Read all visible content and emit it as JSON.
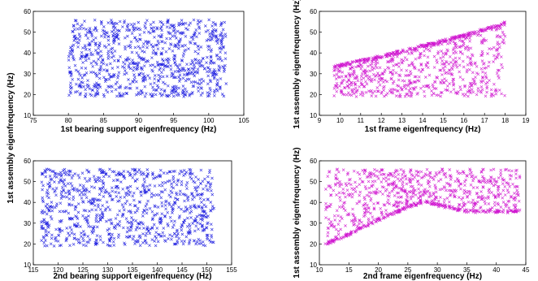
{
  "figure": {
    "shared_ylabel": "1st assembly eigenfrequency (Hz)"
  },
  "chart_data": [
    {
      "type": "scatter",
      "marker": "x",
      "color": "#1f1fe0",
      "xlabel": "1st bearing support eigenfrequency (Hz)",
      "ylabel": "",
      "xlim": [
        75,
        105
      ],
      "ylim": [
        10,
        60
      ],
      "xticks": [
        75,
        80,
        85,
        90,
        95,
        100,
        105
      ],
      "yticks": [
        10,
        20,
        30,
        40,
        50,
        60
      ],
      "grid": false,
      "point_cloud": {
        "count": 900,
        "x_range": [
          80,
          102.5
        ],
        "y_range": [
          19,
          56
        ],
        "distribution": "uniform"
      }
    },
    {
      "type": "scatter",
      "marker": "x",
      "color": "#d018d0",
      "xlabel": "1st frame eigenfrequency (Hz)",
      "ylabel": "1st assembly eigenfrequency (Hz)",
      "xlim": [
        9,
        19
      ],
      "ylim": [
        10,
        60
      ],
      "xticks": [
        9,
        10,
        11,
        12,
        13,
        14,
        15,
        16,
        17,
        18,
        19
      ],
      "yticks": [
        10,
        20,
        30,
        40,
        50,
        60
      ],
      "grid": false,
      "point_cloud": {
        "count": 900,
        "x_range": [
          9.7,
          18
        ],
        "y_range": [
          19,
          55
        ],
        "upper_envelope": [
          [
            9.7,
            34
          ],
          [
            12,
            39
          ],
          [
            14,
            44
          ],
          [
            16,
            49
          ],
          [
            18,
            55
          ]
        ]
      }
    },
    {
      "type": "scatter",
      "marker": "x",
      "color": "#1f1fe0",
      "xlabel": "2nd bearing support eigenfrequency (Hz)",
      "ylabel": "",
      "xlim": [
        115,
        155
      ],
      "ylim": [
        10,
        60
      ],
      "xticks": [
        115,
        120,
        125,
        130,
        135,
        140,
        145,
        150,
        155
      ],
      "yticks": [
        10,
        20,
        30,
        40,
        50,
        60
      ],
      "grid": false,
      "point_cloud": {
        "count": 900,
        "x_range": [
          116.5,
          151.5
        ],
        "y_range": [
          19,
          56
        ],
        "distribution": "uniform"
      }
    },
    {
      "type": "scatter",
      "marker": "x",
      "color": "#d018d0",
      "xlabel": "2nd frame eigenfrequency (Hz)",
      "ylabel": "1st assembly eigenfrequency (Hz)",
      "xlim": [
        10,
        45
      ],
      "ylim": [
        10,
        60
      ],
      "xticks": [
        10,
        15,
        20,
        25,
        30,
        35,
        40,
        45
      ],
      "yticks": [
        10,
        20,
        30,
        40,
        50,
        60
      ],
      "grid": false,
      "point_cloud": {
        "count": 900,
        "x_range": [
          11,
          44
        ],
        "y_range": [
          19,
          56
        ],
        "lower_envelope": [
          [
            11,
            19
          ],
          [
            15,
            24
          ],
          [
            20,
            31
          ],
          [
            25,
            37
          ],
          [
            28,
            40
          ],
          [
            30,
            38
          ],
          [
            35,
            35
          ],
          [
            44,
            35
          ]
        ]
      }
    }
  ]
}
